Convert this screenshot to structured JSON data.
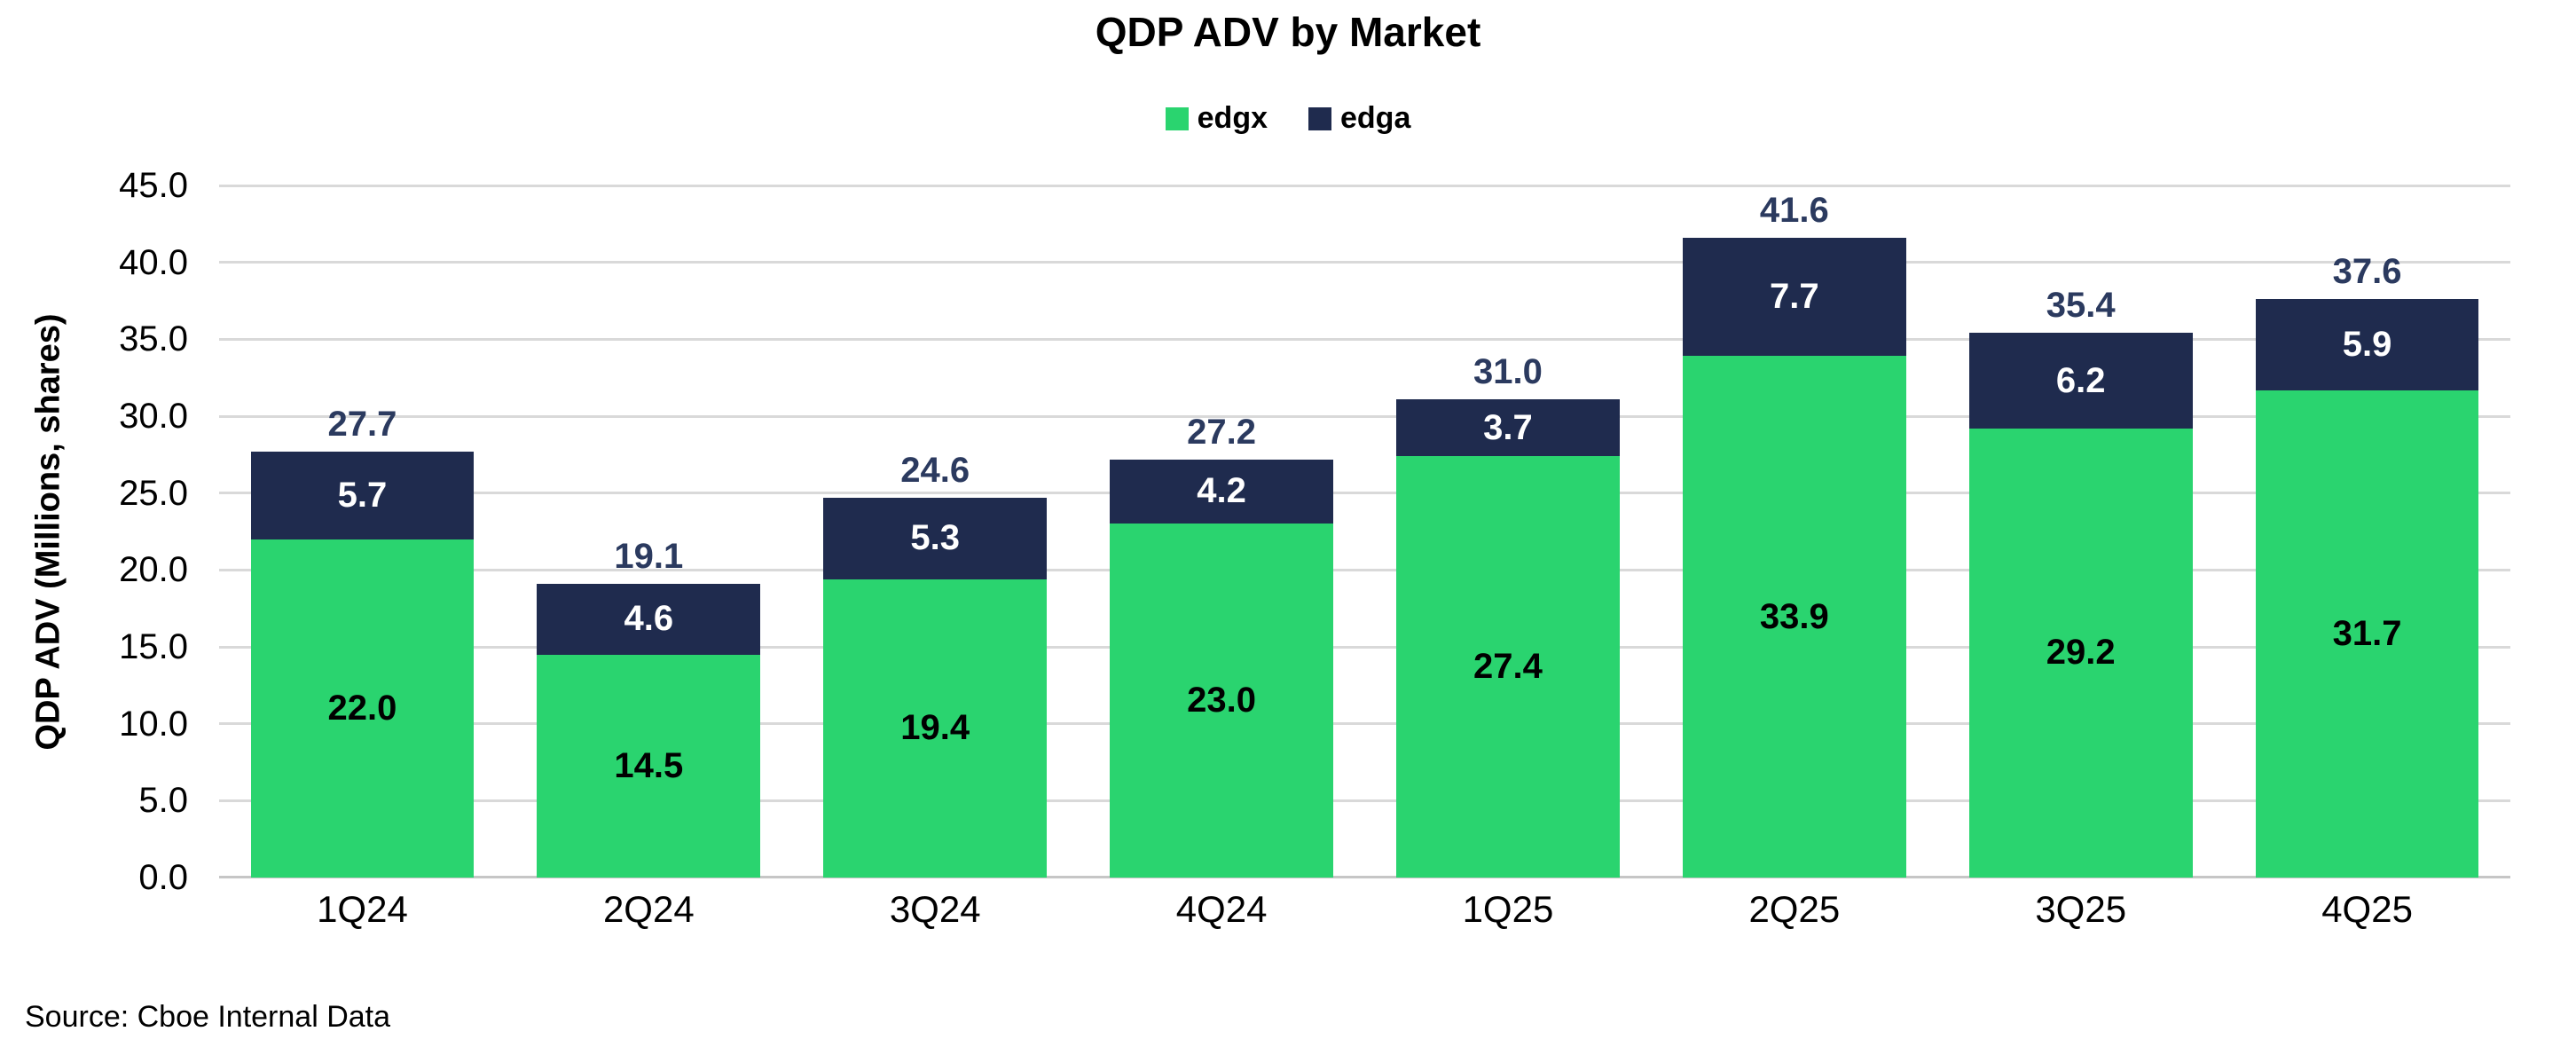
{
  "source_note": "Source: Cboe Internal Data",
  "colors": {
    "edgx": "#2ad46f",
    "edga": "#1f2b4e",
    "total_label": "#2b3a5f",
    "gridline": "#d9d9d9",
    "axis_line": "#c6c6c6",
    "title_text": "#000000"
  },
  "chart_data": {
    "type": "bar",
    "stacked": true,
    "title": "QDP ADV by Market",
    "xlabel": "",
    "ylabel": "QDP ADV (Millions, shares)",
    "ylim": [
      0,
      45
    ],
    "y_tick_step": 5,
    "y_ticks": [
      "0.0",
      "5.0",
      "10.0",
      "15.0",
      "20.0",
      "25.0",
      "30.0",
      "35.0",
      "40.0",
      "45.0"
    ],
    "grid": true,
    "legend_position": "top",
    "categories": [
      "1Q24",
      "2Q24",
      "3Q24",
      "4Q24",
      "1Q25",
      "2Q25",
      "3Q25",
      "4Q25"
    ],
    "series": [
      {
        "name": "edgx",
        "color": "#2ad46f",
        "label_color": "#000000",
        "values": [
          "22.0",
          "14.5",
          "19.4",
          "23.0",
          "27.4",
          "33.9",
          "29.2",
          "31.7"
        ]
      },
      {
        "name": "edga",
        "color": "#1f2b4e",
        "label_color": "#ffffff",
        "values": [
          "5.7",
          "4.6",
          "5.3",
          "4.2",
          "3.7",
          "7.7",
          "6.2",
          "5.9"
        ]
      }
    ],
    "totals": [
      "27.7",
      "19.1",
      "24.6",
      "27.2",
      "31.0",
      "41.6",
      "35.4",
      "37.6"
    ]
  }
}
